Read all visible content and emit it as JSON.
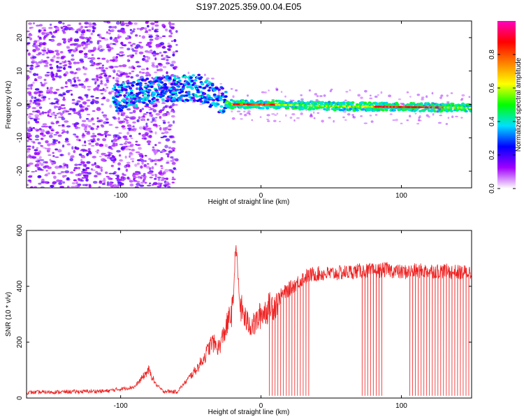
{
  "title": "S197.2025.359.00.04.E05",
  "chart_data": [
    {
      "type": "heatmap",
      "name": "spectrogram",
      "xlabel": "Height of straight line (km)",
      "ylabel": "Frequency (Hz)",
      "xlim": [
        -167,
        150
      ],
      "ylim": [
        -25,
        25
      ],
      "xticks": [
        -100,
        0,
        100
      ],
      "yticks": [
        -20,
        -10,
        0,
        10,
        20
      ],
      "colorbar": {
        "label": "Normalized spectral amplitude",
        "range": [
          0.0,
          1.0
        ],
        "ticks": [
          0.0,
          0.2,
          0.4,
          0.6,
          0.8
        ],
        "tick_labels": [
          "0.0",
          "0.2",
          "0.4",
          "0.6",
          "0.8"
        ],
        "colors": [
          "#ffffff",
          "#a000ff",
          "#0000ff",
          "#00e0ff",
          "#00ff00",
          "#ffff00",
          "#ff8000",
          "#ff0000",
          "#ff00c0"
        ]
      },
      "ridge": {
        "x": [
          -100,
          -80,
          -60,
          -45,
          -35,
          -25,
          -20,
          0,
          50,
          100,
          150
        ],
        "y": [
          2,
          4,
          5,
          5,
          3,
          0.5,
          0,
          0,
          -0.5,
          -0.8,
          -1
        ]
      }
    },
    {
      "type": "line",
      "name": "snr",
      "xlabel": "Height of straight line (km)",
      "ylabel": "SNR (10 * v/v)",
      "xlim": [
        -167,
        150
      ],
      "ylim": [
        0,
        600
      ],
      "xticks": [
        -100,
        0,
        100
      ],
      "yticks": [
        0,
        200,
        400,
        600
      ],
      "color": "#ee2222",
      "series": [
        {
          "name": "SNR",
          "x": [
            -167,
            -140,
            -110,
            -90,
            -85,
            -80,
            -75,
            -70,
            -60,
            -55,
            -50,
            -45,
            -40,
            -35,
            -30,
            -25,
            -20,
            -18,
            -15,
            -10,
            -5,
            0,
            5,
            10,
            15,
            20,
            25,
            30,
            35,
            40,
            50,
            60,
            70,
            80,
            90,
            100,
            110,
            120,
            130,
            140,
            150
          ],
          "y": [
            20,
            22,
            25,
            40,
            70,
            100,
            50,
            25,
            22,
            50,
            80,
            110,
            150,
            200,
            180,
            250,
            320,
            560,
            330,
            270,
            260,
            300,
            320,
            340,
            370,
            390,
            410,
            430,
            440,
            445,
            445,
            450,
            455,
            455,
            460,
            450,
            455,
            455,
            455,
            450,
            450
          ]
        }
      ],
      "dropouts": [
        6,
        8,
        10,
        12,
        14,
        16,
        18,
        20,
        22,
        24,
        26,
        28,
        30,
        32,
        34,
        72,
        74,
        76,
        78,
        80,
        82,
        84,
        86,
        106,
        108,
        110,
        112,
        114,
        116,
        118,
        120,
        122,
        124,
        126,
        128,
        130,
        132,
        134,
        136,
        138,
        140,
        142,
        144,
        146,
        148
      ]
    }
  ]
}
